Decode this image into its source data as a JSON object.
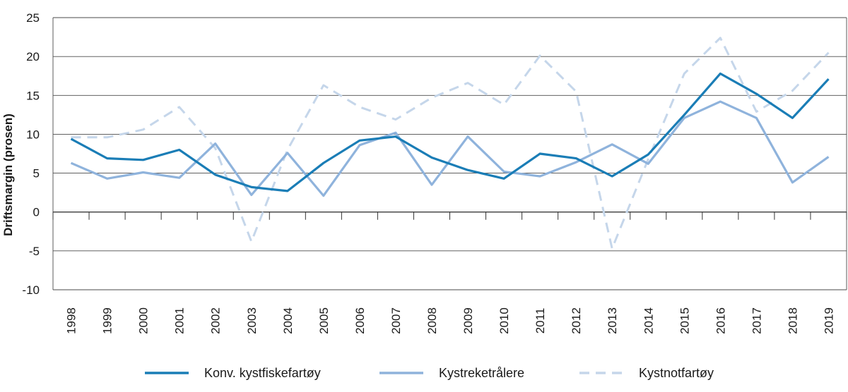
{
  "chart_data": {
    "type": "line",
    "title": "",
    "xlabel": "",
    "ylabel": "Driftsmargin (prosen)",
    "ylim": [
      -10,
      25
    ],
    "yticks": [
      -10,
      -5,
      0,
      5,
      10,
      15,
      20,
      25
    ],
    "grid": true,
    "legend_position": "bottom",
    "categories": [
      "1998",
      "1999",
      "2000",
      "2001",
      "2002",
      "2003",
      "2004",
      "2005",
      "2006",
      "2007",
      "2008",
      "2009",
      "2010",
      "2011",
      "2012",
      "2013",
      "2014",
      "2015",
      "2016",
      "2017",
      "2018",
      "2019"
    ],
    "series": [
      {
        "name": "Konv. kystfiskefartøy",
        "color": "#1a7db6",
        "style": "solid",
        "values": [
          9.4,
          6.9,
          6.7,
          8.0,
          4.8,
          3.2,
          2.7,
          6.3,
          9.2,
          9.7,
          7.0,
          5.4,
          4.3,
          7.5,
          6.9,
          4.6,
          7.4,
          12.5,
          17.8,
          15.2,
          12.1,
          17.1
        ]
      },
      {
        "name": "Kystreketrålere",
        "color": "#8fb3dc",
        "style": "solid",
        "values": [
          6.3,
          4.3,
          5.1,
          4.4,
          8.8,
          2.2,
          7.6,
          2.1,
          8.6,
          10.2,
          3.5,
          9.7,
          5.2,
          4.6,
          6.4,
          8.7,
          6.2,
          12.1,
          14.2,
          12.1,
          3.8,
          7.1
        ]
      },
      {
        "name": "Kystnotfartøy",
        "color": "#c5d6ea",
        "style": "dashed",
        "values": [
          9.6,
          9.6,
          10.6,
          13.5,
          8.2,
          -3.8,
          8.0,
          16.3,
          13.5,
          11.9,
          14.7,
          16.6,
          13.8,
          20.1,
          15.5,
          -4.7,
          6.8,
          17.8,
          22.4,
          12.9,
          15.6,
          20.5
        ]
      }
    ]
  }
}
